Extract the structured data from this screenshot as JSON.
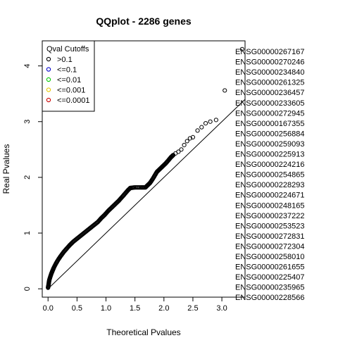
{
  "chart_data": {
    "type": "scatter",
    "title": "QQplot - 2286 genes",
    "xlabel": "Theoretical Pvalues",
    "ylabel": "Real Pvalues",
    "xlim": [
      -0.1,
      3.4
    ],
    "ylim": [
      -0.15,
      4.45
    ],
    "x_ticks": [
      "0.0",
      "0.5",
      "1.0",
      "1.5",
      "2.0",
      "2.5",
      "3.0"
    ],
    "y_ticks": [
      "0",
      "1",
      "2",
      "3",
      "4"
    ],
    "reference_line": {
      "from": [
        0,
        0
      ],
      "to": [
        3.4,
        3.4
      ]
    },
    "legend": {
      "title": "Qval Cutoffs",
      "placement": "top-left",
      "entries": [
        {
          "label": ">0.1",
          "color": "#000000",
          "marker": "o"
        },
        {
          "label": "<=0.1",
          "color": "#0000cc",
          "marker": "o"
        },
        {
          "label": "<=0.01",
          "color": "#00cc00",
          "marker": "o"
        },
        {
          "label": "<=0.001",
          "color": "#e6c800",
          "marker": "o"
        },
        {
          "label": "<=0.0001",
          "color": "#cc0000",
          "marker": "o"
        }
      ]
    },
    "series": [
      {
        "color": "#000000",
        "dense_curve": [
          [
            0.0,
            0.02
          ],
          [
            0.01,
            0.08
          ],
          [
            0.02,
            0.15
          ],
          [
            0.04,
            0.22
          ],
          [
            0.06,
            0.28
          ],
          [
            0.08,
            0.33
          ],
          [
            0.1,
            0.38
          ],
          [
            0.14,
            0.46
          ],
          [
            0.18,
            0.53
          ],
          [
            0.22,
            0.59
          ],
          [
            0.27,
            0.66
          ],
          [
            0.32,
            0.72
          ],
          [
            0.38,
            0.79
          ],
          [
            0.44,
            0.85
          ],
          [
            0.5,
            0.9
          ],
          [
            0.56,
            0.95
          ],
          [
            0.62,
            1.0
          ],
          [
            0.68,
            1.05
          ],
          [
            0.74,
            1.1
          ],
          [
            0.8,
            1.15
          ],
          [
            0.86,
            1.2
          ],
          [
            0.92,
            1.27
          ],
          [
            0.98,
            1.33
          ],
          [
            1.04,
            1.4
          ],
          [
            1.1,
            1.46
          ],
          [
            1.16,
            1.52
          ],
          [
            1.22,
            1.58
          ],
          [
            1.28,
            1.65
          ],
          [
            1.33,
            1.71
          ],
          [
            1.38,
            1.77
          ],
          [
            1.42,
            1.81
          ],
          [
            1.5,
            1.82
          ],
          [
            1.6,
            1.82
          ],
          [
            1.68,
            1.82
          ],
          [
            1.72,
            1.86
          ],
          [
            1.76,
            1.9
          ],
          [
            1.8,
            1.96
          ],
          [
            1.84,
            2.03
          ],
          [
            1.88,
            2.1
          ],
          [
            1.93,
            2.15
          ],
          [
            1.98,
            2.2
          ],
          [
            2.03,
            2.25
          ],
          [
            2.08,
            2.31
          ],
          [
            2.12,
            2.36
          ],
          [
            2.16,
            2.4
          ]
        ],
        "sparse_points": [
          [
            2.2,
            2.43
          ],
          [
            2.25,
            2.46
          ],
          [
            2.3,
            2.5
          ],
          [
            2.35,
            2.58
          ],
          [
            2.4,
            2.65
          ],
          [
            2.45,
            2.7
          ],
          [
            2.5,
            2.72
          ],
          [
            2.58,
            2.84
          ],
          [
            2.65,
            2.9
          ],
          [
            2.72,
            2.97
          ],
          [
            2.8,
            3.0
          ],
          [
            2.9,
            3.03
          ],
          [
            3.05,
            3.56
          ],
          [
            3.35,
            4.3
          ]
        ]
      }
    ],
    "gene_labels": [
      "ENSG00000267167",
      "ENSG00000270246",
      "ENSG00000234840",
      "ENSG00000261325",
      "ENSG00000236457",
      "ENSG00000233605",
      "ENSG00000272945",
      "ENSG00000167355",
      "ENSG00000256884",
      "ENSG00000259093",
      "ENSG00000225913",
      "ENSG00000224216",
      "ENSG00000254865",
      "ENSG00000228293",
      "ENSG00000224671",
      "ENSG00000248165",
      "ENSG00000237222",
      "ENSG00000253523",
      "ENSG00000272831",
      "ENSG00000272304",
      "ENSG00000258010",
      "ENSG00000261655",
      "ENSG00000225407",
      "ENSG00000235965",
      "ENSG00000228566"
    ]
  }
}
